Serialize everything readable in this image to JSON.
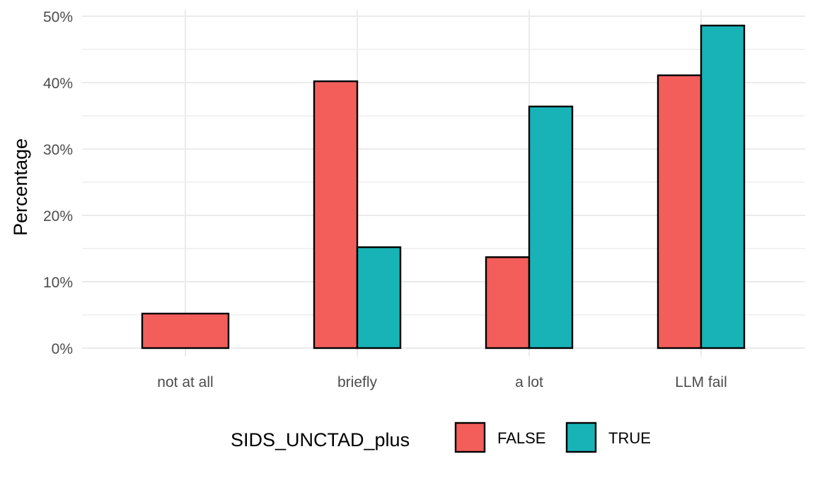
{
  "chart_data": {
    "type": "bar",
    "categories": [
      "not at all",
      "briefly",
      "a lot",
      "LLM fail"
    ],
    "series": [
      {
        "name": "FALSE",
        "values": [
          5.2,
          40.2,
          13.7,
          41.1
        ]
      },
      {
        "name": "TRUE",
        "values": [
          0,
          15.2,
          36.4,
          48.6
        ]
      }
    ],
    "ylabel": "Percentage",
    "xlabel": "",
    "ylim": [
      0,
      50
    ],
    "yticks": [
      0,
      10,
      20,
      30,
      40,
      50
    ],
    "ytick_labels": [
      "0%",
      "10%",
      "20%",
      "30%",
      "40%",
      "50%"
    ],
    "legend": {
      "title": "SIDS_UNCTAD_plus",
      "position": "bottom"
    },
    "grid": true
  },
  "colors": {
    "FALSE": "#F35E5A",
    "TRUE": "#17B3B7"
  }
}
